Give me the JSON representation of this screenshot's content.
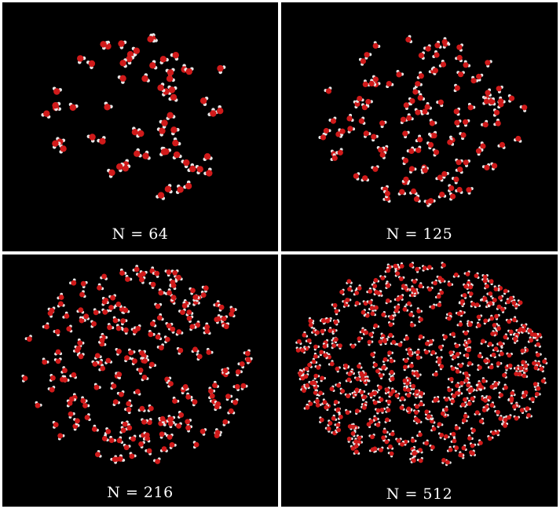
{
  "figure": {
    "panels": [
      {
        "id": "n64",
        "label": "N = 64",
        "molecules": 64
      },
      {
        "id": "n125",
        "label": "N = 125",
        "molecules": 125
      },
      {
        "id": "n216",
        "label": "N = 216",
        "molecules": 216
      },
      {
        "id": "n512",
        "label": "N = 512",
        "molecules": 512
      }
    ],
    "colors": {
      "background": "#000000",
      "oxygen": "#d01a1a",
      "hydrogen": "#e8e8e8",
      "frame": "#ffffff"
    }
  }
}
